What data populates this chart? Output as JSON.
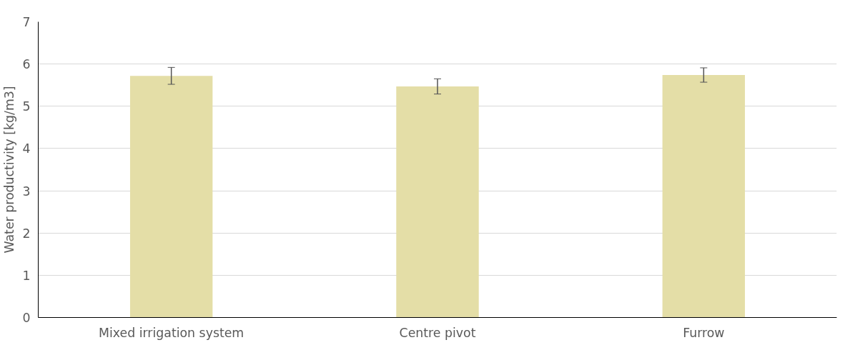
{
  "chart_data": {
    "type": "bar",
    "ylabel": "Water productivity [kg/m3]",
    "categories": [
      "Mixed irrigation system",
      "Centre pivot",
      "Furrow"
    ],
    "values": [
      5.72,
      5.47,
      5.74
    ],
    "errors": [
      0.2,
      0.18,
      0.17
    ],
    "color": "#e4dea7",
    "ylim": [
      0,
      7
    ],
    "yticks": [
      0,
      1,
      2,
      3,
      4,
      5,
      6,
      7
    ],
    "grid": "y"
  }
}
